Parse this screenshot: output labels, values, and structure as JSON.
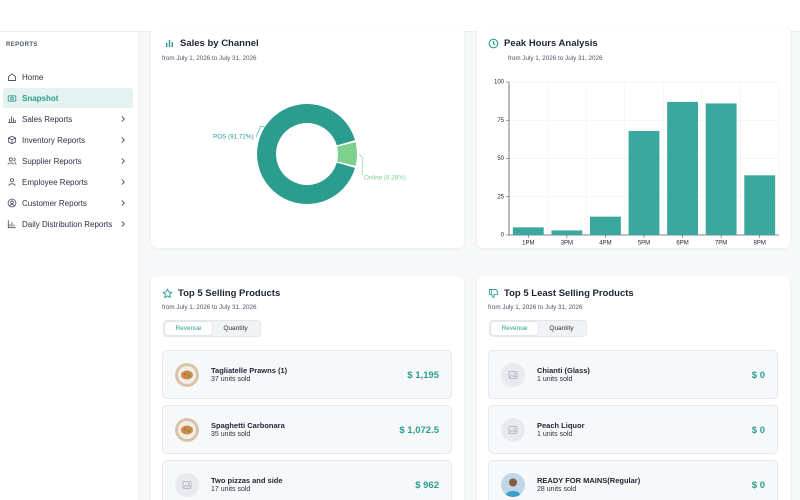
{
  "sidebar": {
    "section_label": "REPORTS",
    "items": [
      {
        "label": "Home",
        "icon": "home-icon",
        "active": false,
        "chevron": false
      },
      {
        "label": "Snapshot",
        "icon": "camera-icon",
        "active": true,
        "chevron": false
      },
      {
        "label": "Sales Reports",
        "icon": "bar-chart-icon",
        "active": false,
        "chevron": true
      },
      {
        "label": "Inventory Reports",
        "icon": "box-icon",
        "active": false,
        "chevron": true
      },
      {
        "label": "Supplier Reports",
        "icon": "users-icon",
        "active": false,
        "chevron": true
      },
      {
        "label": "Employee Reports",
        "icon": "user-group-icon",
        "active": false,
        "chevron": true
      },
      {
        "label": "Customer Reports",
        "icon": "user-circle-icon",
        "active": false,
        "chevron": true
      },
      {
        "label": "Daily Distribution Reports",
        "icon": "chart-icon",
        "active": false,
        "chevron": true
      }
    ]
  },
  "sales_by_channel": {
    "title": "Sales by Channel",
    "subtitle": "from July 1, 2026 to July 31, 2026"
  },
  "peak_hours": {
    "title": "Peak Hours Analysis",
    "subtitle": "from July 1, 2026 to July 31, 2026"
  },
  "top_selling": {
    "title": "Top 5 Selling Products",
    "subtitle": "from July 1, 2026 to July 31, 2026",
    "toggle": {
      "revenue": "Revenue",
      "quantity": "Quantity",
      "selected": "Revenue"
    },
    "products": [
      {
        "name": "Tagliatelle Prawns (1)",
        "sold": "37 units sold",
        "value": "$ 1,195",
        "thumb": "food-photo"
      },
      {
        "name": "Spaghetti Carbonara",
        "sold": "35 units sold",
        "value": "$ 1,072.5",
        "thumb": "food-photo"
      },
      {
        "name": "Two pizzas and side",
        "sold": "17 units sold",
        "value": "$ 962",
        "thumb": "image-placeholder-icon"
      }
    ]
  },
  "least_selling": {
    "title": "Top 5 Least Selling Products",
    "subtitle": "from July 1, 2026 to July 31, 2026",
    "toggle": {
      "revenue": "Revenue",
      "quantity": "Quantity",
      "selected": "Revenue"
    },
    "products": [
      {
        "name": "Chianti (Glass)",
        "sold": "1 units sold",
        "value": "$ 0",
        "thumb": "image-placeholder-icon"
      },
      {
        "name": "Peach Liquor",
        "sold": "1 units sold",
        "value": "$ 0",
        "thumb": "image-placeholder-icon"
      },
      {
        "name": "READY FOR MAINS(Regular)",
        "sold": "28 units sold",
        "value": "$ 0",
        "thumb": "person-photo"
      }
    ]
  },
  "colors": {
    "accent": "#2a9d8f",
    "online": "#7fcf8e",
    "bar": "#3aa89c"
  },
  "chart_data": [
    {
      "type": "pie",
      "donut": true,
      "labels": [
        "POS (91.72%)",
        "Online (8.28%)"
      ],
      "values": [
        91.72,
        8.28
      ]
    },
    {
      "type": "bar",
      "categories": [
        "1PM",
        "3PM",
        "4PM",
        "5PM",
        "6PM",
        "7PM",
        "8PM"
      ],
      "values": [
        5,
        3,
        12,
        68,
        87,
        86,
        39
      ],
      "ylim": [
        0,
        100
      ],
      "yticks": [
        0,
        25,
        50,
        75,
        100
      ],
      "grid": true
    }
  ]
}
